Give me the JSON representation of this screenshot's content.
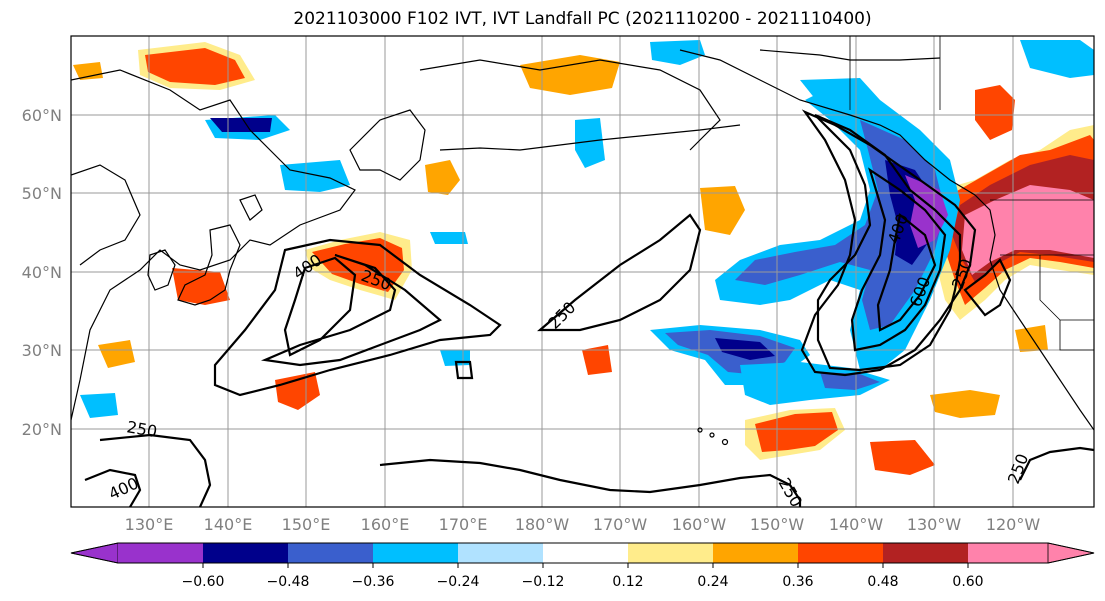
{
  "title": "2021103000 F102 IVT, IVT Landfall PC (2021110200 - 2021110400)",
  "lat_labels": [
    "60°N",
    "50°N",
    "40°N",
    "30°N",
    "20°N"
  ],
  "lon_labels": [
    "130°E",
    "140°E",
    "150°E",
    "160°E",
    "170°E",
    "180°W",
    "170°W",
    "160°W",
    "150°W",
    "140°W",
    "130°W",
    "120°W"
  ],
  "colorbar": {
    "colors": [
      "#9932cc",
      "#00008b",
      "#3a5fcd",
      "#00bfff",
      "#b0e2ff",
      "#ffffff",
      "#ffec8b",
      "#ffa500",
      "#ff4500",
      "#b22222",
      "#ff82ab"
    ],
    "ticks": [
      "−0.60",
      "−0.48",
      "−0.36",
      "−0.24",
      "−0.12",
      "0.12",
      "0.24",
      "0.36",
      "0.48",
      "0.60"
    ]
  },
  "contour_labels": [
    "400",
    "250",
    "250",
    "400",
    "600",
    "250",
    "250",
    "400",
    "250",
    "250"
  ]
}
